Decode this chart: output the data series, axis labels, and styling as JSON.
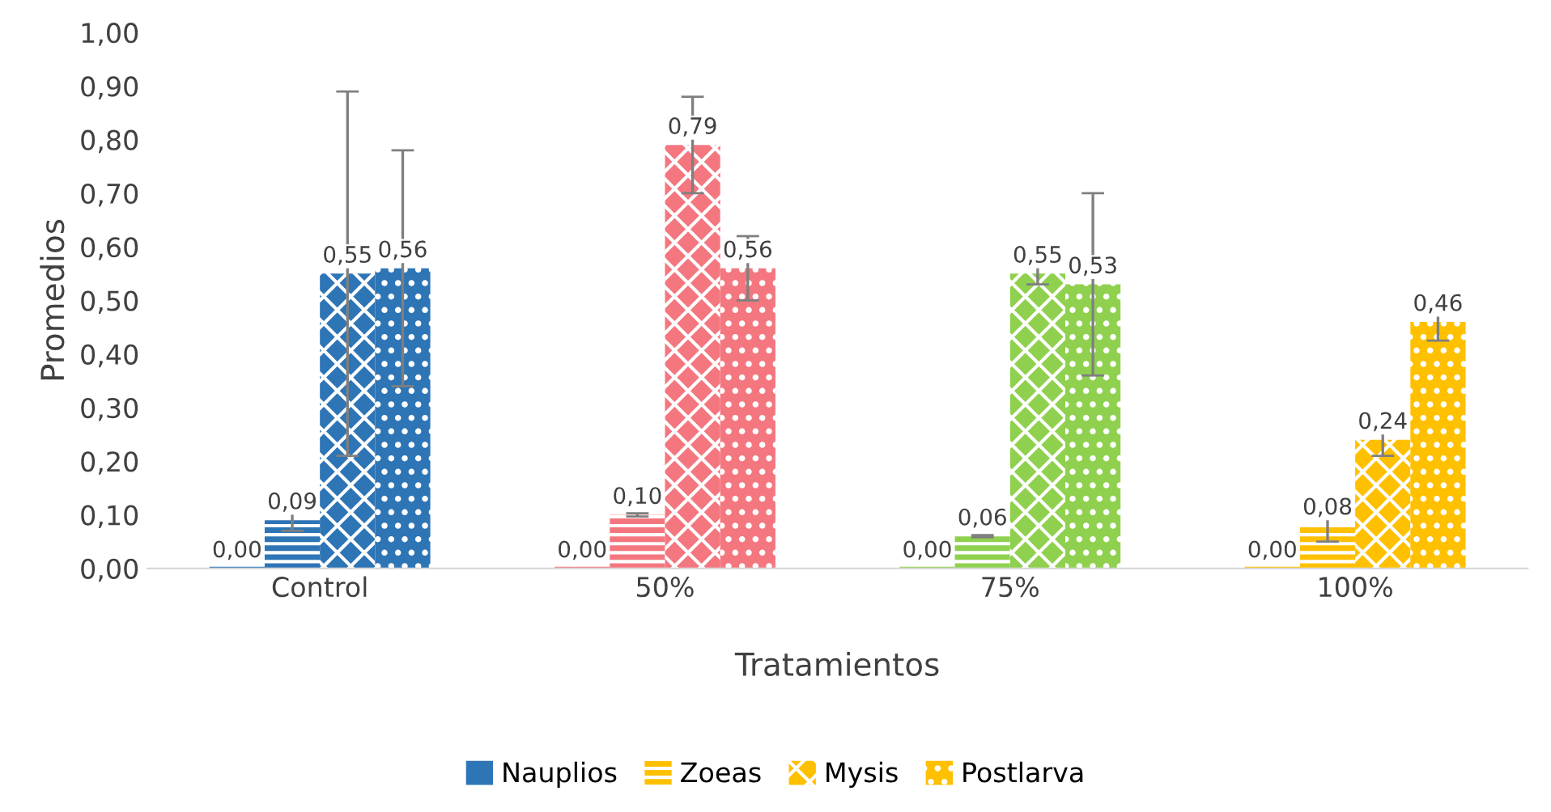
{
  "chart_data": {
    "type": "bar",
    "xlabel": "Tratamientos",
    "ylabel": "Promedios",
    "categories": [
      "Control",
      "50%",
      "75%",
      "100%"
    ],
    "series": [
      {
        "name": "Nauplios",
        "color": "#2e75b6",
        "colors": [
          "#2e75b6",
          "#f4777f",
          "#8fd14f",
          "#ffc000"
        ],
        "values": [
          0.0,
          0.0,
          0.0,
          0.0
        ],
        "value_labels": [
          "0,00",
          "0,00",
          "0,00",
          "0,00"
        ]
      },
      {
        "name": "Zoeas",
        "color": "#ffc000",
        "colors": [
          "#2e75b6",
          "#f4777f",
          "#8fd14f",
          "#ffc000"
        ],
        "values": [
          0.09,
          0.1,
          0.06,
          0.08
        ],
        "errors": [
          0.02,
          0.003,
          0.002,
          0.03
        ],
        "value_labels": [
          "0,09",
          "0,10",
          "0,06",
          "0,08"
        ]
      },
      {
        "name": "Mysis",
        "color": "#ffc000",
        "colors": [
          "#2e75b6",
          "#f4777f",
          "#8fd14f",
          "#ffc000"
        ],
        "values": [
          0.55,
          0.79,
          0.55,
          0.24
        ],
        "errors": [
          0.34,
          0.09,
          0.02,
          0.03
        ],
        "value_labels": [
          "0,55",
          "0,79",
          "0,55",
          "0,24"
        ]
      },
      {
        "name": "Postlarva",
        "color": "#ffc000",
        "colors": [
          "#2e75b6",
          "#f4777f",
          "#8fd14f",
          "#ffc000"
        ],
        "values": [
          0.56,
          0.56,
          0.53,
          0.46
        ],
        "errors": [
          0.22,
          0.06,
          0.17,
          0.035
        ],
        "value_labels": [
          "0,56",
          "0,56",
          "0,53",
          "0,46"
        ]
      }
    ],
    "ylim": [
      0,
      1.0
    ],
    "yticks": [
      {
        "value": 0,
        "label": "0,00"
      },
      {
        "value": 0.1,
        "label": "0,10"
      },
      {
        "value": 0.2,
        "label": "0,20"
      },
      {
        "value": 0.3,
        "label": "0,30"
      },
      {
        "value": 0.4,
        "label": "0,40"
      },
      {
        "value": 0.5,
        "label": "0,50"
      },
      {
        "value": 0.6,
        "label": "0,60"
      },
      {
        "value": 0.7,
        "label": "0,70"
      },
      {
        "value": 0.8,
        "label": "0,80"
      },
      {
        "value": 0.9,
        "label": "0,90"
      },
      {
        "value": 1.0,
        "label": "1,00"
      }
    ],
    "grid": false,
    "legend": "bottom"
  }
}
